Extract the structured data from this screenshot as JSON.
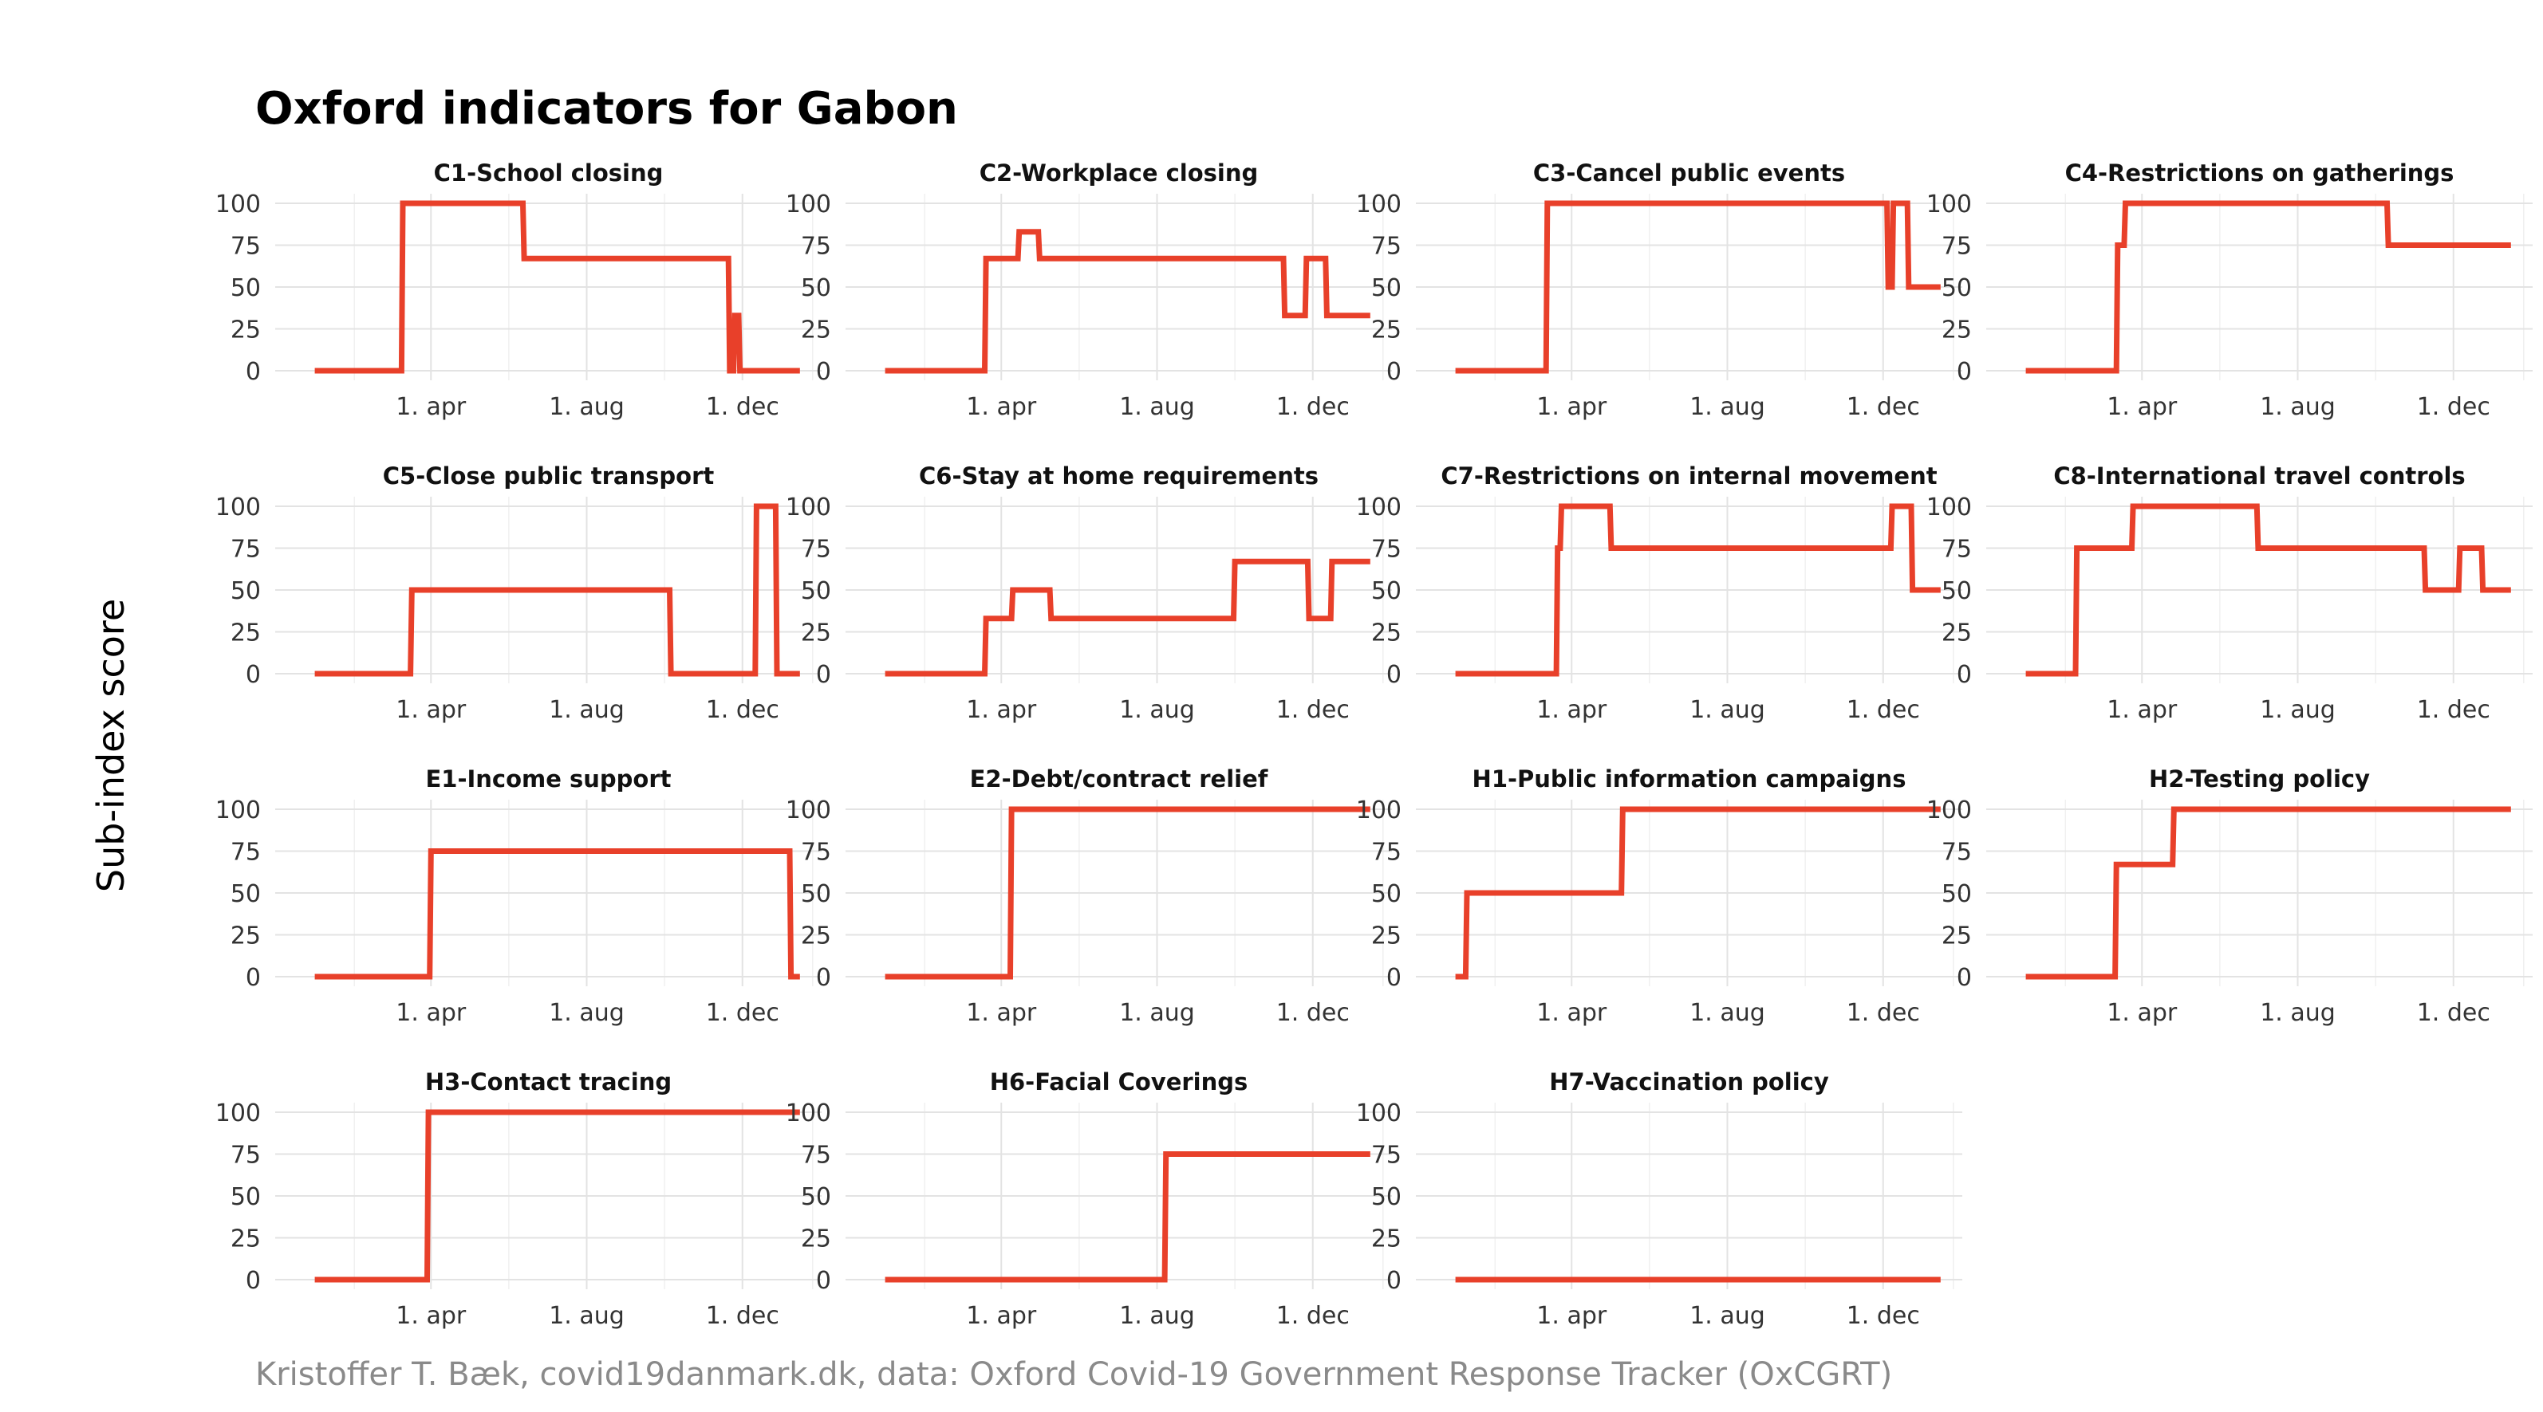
{
  "title": "Oxford indicators for Gabon",
  "ylabel": "Sub-index score",
  "caption": "Kristoffer T. Bæk, covid19danmark.dk, data: Oxford Covid-19 Government Response Tracker (OxCGRT)",
  "colors": {
    "line": "#e8402a",
    "grid": "#e3e3e3",
    "caption": "#8a8a8a"
  },
  "chart_data": [
    {
      "type": "line",
      "title": "C1-School closing",
      "x_tick_labels": [
        "1. apr",
        "1. aug",
        "1. dec"
      ],
      "y_ticks": [
        0,
        25,
        50,
        75,
        100
      ],
      "ylim": [
        0,
        100
      ],
      "series": [
        {
          "x": [
            "2020-01-01",
            "2020-03-09",
            "2020-03-10",
            "2020-06-12",
            "2020-06-13",
            "2020-11-20",
            "2020-11-21",
            "2020-11-24",
            "2020-11-25",
            "2020-11-28",
            "2020-11-29",
            "2021-01-15"
          ],
          "y": [
            0,
            0,
            100,
            100,
            67,
            67,
            0,
            0,
            33,
            33,
            0,
            0
          ]
        }
      ]
    },
    {
      "type": "line",
      "title": "C2-Workplace closing",
      "x_tick_labels": [
        "1. apr",
        "1. aug",
        "1. dec"
      ],
      "y_ticks": [
        0,
        25,
        50,
        75,
        100
      ],
      "ylim": [
        0,
        100
      ],
      "series": [
        {
          "x": [
            "2020-01-01",
            "2020-03-19",
            "2020-03-20",
            "2020-04-14",
            "2020-04-15",
            "2020-04-30",
            "2020-05-01",
            "2020-11-08",
            "2020-11-09",
            "2020-11-25",
            "2020-11-26",
            "2020-12-11",
            "2020-12-12",
            "2021-01-15"
          ],
          "y": [
            0,
            0,
            67,
            67,
            83,
            83,
            67,
            67,
            33,
            33,
            67,
            67,
            33,
            33
          ]
        }
      ]
    },
    {
      "type": "line",
      "title": "C3-Cancel public events",
      "x_tick_labels": [
        "1. apr",
        "1. aug",
        "1. dec"
      ],
      "y_ticks": [
        0,
        25,
        50,
        75,
        100
      ],
      "ylim": [
        0,
        100
      ],
      "series": [
        {
          "x": [
            "2020-01-01",
            "2020-03-12",
            "2020-03-13",
            "2020-12-04",
            "2020-12-05",
            "2020-12-08",
            "2020-12-09",
            "2020-12-20",
            "2020-12-21",
            "2021-01-15"
          ],
          "y": [
            0,
            0,
            100,
            100,
            50,
            50,
            100,
            100,
            50,
            50
          ]
        }
      ]
    },
    {
      "type": "line",
      "title": "C4-Restrictions on gatherings",
      "x_tick_labels": [
        "1. apr",
        "1. aug",
        "1. dec"
      ],
      "y_ticks": [
        0,
        25,
        50,
        75,
        100
      ],
      "ylim": [
        0,
        100
      ],
      "series": [
        {
          "x": [
            "2020-01-01",
            "2020-03-12",
            "2020-03-13",
            "2020-03-18",
            "2020-03-19",
            "2020-10-10",
            "2020-10-11",
            "2021-01-15"
          ],
          "y": [
            0,
            0,
            75,
            75,
            100,
            100,
            75,
            75
          ]
        }
      ]
    },
    {
      "type": "line",
      "title": "C5-Close public transport",
      "x_tick_labels": [
        "1. apr",
        "1. aug",
        "1. dec"
      ],
      "y_ticks": [
        0,
        25,
        50,
        75,
        100
      ],
      "ylim": [
        0,
        100
      ],
      "series": [
        {
          "x": [
            "2020-01-01",
            "2020-03-16",
            "2020-03-17",
            "2020-10-05",
            "2020-10-06",
            "2020-12-11",
            "2020-12-12",
            "2020-12-27",
            "2020-12-28",
            "2021-01-15"
          ],
          "y": [
            0,
            0,
            50,
            50,
            0,
            0,
            100,
            100,
            0,
            0
          ]
        }
      ]
    },
    {
      "type": "line",
      "title": "C6-Stay at home requirements",
      "x_tick_labels": [
        "1. apr",
        "1. aug",
        "1. dec"
      ],
      "y_ticks": [
        0,
        25,
        50,
        75,
        100
      ],
      "ylim": [
        0,
        100
      ],
      "series": [
        {
          "x": [
            "2020-01-01",
            "2020-03-19",
            "2020-03-20",
            "2020-04-09",
            "2020-04-10",
            "2020-05-09",
            "2020-05-10",
            "2020-09-30",
            "2020-10-01",
            "2020-11-27",
            "2020-11-28",
            "2020-12-15",
            "2020-12-16",
            "2021-01-15"
          ],
          "y": [
            0,
            0,
            33,
            33,
            50,
            50,
            33,
            33,
            67,
            67,
            33,
            33,
            67,
            67
          ]
        }
      ]
    },
    {
      "type": "line",
      "title": "C7-Restrictions on internal movement",
      "x_tick_labels": [
        "1. apr",
        "1. aug",
        "1. dec"
      ],
      "y_ticks": [
        0,
        25,
        50,
        75,
        100
      ],
      "ylim": [
        0,
        100
      ],
      "series": [
        {
          "x": [
            "2020-01-01",
            "2020-03-20",
            "2020-03-21",
            "2020-03-23",
            "2020-03-24",
            "2020-05-01",
            "2020-05-02",
            "2020-12-07",
            "2020-12-08",
            "2020-12-23",
            "2020-12-24",
            "2021-01-15"
          ],
          "y": [
            0,
            0,
            75,
            75,
            100,
            100,
            75,
            75,
            100,
            100,
            50,
            50
          ]
        }
      ]
    },
    {
      "type": "line",
      "title": "C8-International travel controls",
      "x_tick_labels": [
        "1. apr",
        "1. aug",
        "1. dec"
      ],
      "y_ticks": [
        0,
        25,
        50,
        75,
        100
      ],
      "ylim": [
        0,
        100
      ],
      "series": [
        {
          "x": [
            "2020-01-01",
            "2020-02-09",
            "2020-02-10",
            "2020-03-24",
            "2020-03-25",
            "2020-06-30",
            "2020-07-01",
            "2020-11-08",
            "2020-11-09",
            "2020-12-05",
            "2020-12-06",
            "2020-12-23",
            "2020-12-24",
            "2021-01-15"
          ],
          "y": [
            0,
            0,
            75,
            75,
            100,
            100,
            75,
            75,
            50,
            50,
            75,
            75,
            50,
            50
          ]
        }
      ]
    },
    {
      "type": "line",
      "title": "E1-Income support",
      "x_tick_labels": [
        "1. apr",
        "1. aug",
        "1. dec"
      ],
      "y_ticks": [
        0,
        25,
        50,
        75,
        100
      ],
      "ylim": [
        0,
        100
      ],
      "series": [
        {
          "x": [
            "2020-01-01",
            "2020-03-31",
            "2020-04-01",
            "2021-01-07",
            "2021-01-08",
            "2021-01-15"
          ],
          "y": [
            0,
            0,
            75,
            75,
            0,
            0
          ]
        }
      ]
    },
    {
      "type": "line",
      "title": "E2-Debt/contract relief",
      "x_tick_labels": [
        "1. apr",
        "1. aug",
        "1. dec"
      ],
      "y_ticks": [
        0,
        25,
        50,
        75,
        100
      ],
      "ylim": [
        0,
        100
      ],
      "series": [
        {
          "x": [
            "2020-01-01",
            "2020-04-08",
            "2020-04-09",
            "2021-01-15"
          ],
          "y": [
            0,
            0,
            100,
            100
          ]
        }
      ]
    },
    {
      "type": "line",
      "title": "H1-Public information campaigns",
      "x_tick_labels": [
        "1. apr",
        "1. aug",
        "1. dec"
      ],
      "y_ticks": [
        0,
        25,
        50,
        75,
        100
      ],
      "ylim": [
        0,
        100
      ],
      "series": [
        {
          "x": [
            "2020-01-01",
            "2020-01-09",
            "2020-01-10",
            "2020-05-10",
            "2020-05-11",
            "2021-01-15"
          ],
          "y": [
            0,
            0,
            50,
            50,
            100,
            100
          ]
        }
      ]
    },
    {
      "type": "line",
      "title": "H2-Testing policy",
      "x_tick_labels": [
        "1. apr",
        "1. aug",
        "1. dec"
      ],
      "y_ticks": [
        0,
        25,
        50,
        75,
        100
      ],
      "ylim": [
        0,
        100
      ],
      "series": [
        {
          "x": [
            "2020-01-01",
            "2020-03-11",
            "2020-03-12",
            "2020-04-25",
            "2020-04-26",
            "2021-01-15"
          ],
          "y": [
            0,
            0,
            67,
            67,
            100,
            100
          ]
        }
      ]
    },
    {
      "type": "line",
      "title": "H3-Contact tracing",
      "x_tick_labels": [
        "1. apr",
        "1. aug",
        "1. dec"
      ],
      "y_ticks": [
        0,
        25,
        50,
        75,
        100
      ],
      "ylim": [
        0,
        100
      ],
      "series": [
        {
          "x": [
            "2020-01-01",
            "2020-03-29",
            "2020-03-30",
            "2021-01-15"
          ],
          "y": [
            0,
            0,
            100,
            100
          ]
        }
      ]
    },
    {
      "type": "line",
      "title": "H6-Facial Coverings",
      "x_tick_labels": [
        "1. apr",
        "1. aug",
        "1. dec"
      ],
      "y_ticks": [
        0,
        25,
        50,
        75,
        100
      ],
      "ylim": [
        0,
        100
      ],
      "series": [
        {
          "x": [
            "2020-01-01",
            "2020-08-07",
            "2020-08-08",
            "2021-01-15"
          ],
          "y": [
            0,
            0,
            75,
            75
          ]
        }
      ]
    },
    {
      "type": "line",
      "title": "H7-Vaccination policy",
      "x_tick_labels": [
        "1. apr",
        "1. aug",
        "1. dec"
      ],
      "y_ticks": [
        0,
        25,
        50,
        75,
        100
      ],
      "ylim": [
        0,
        100
      ],
      "series": [
        {
          "x": [
            "2020-01-01",
            "2021-01-15"
          ],
          "y": [
            0,
            0
          ]
        }
      ]
    }
  ]
}
